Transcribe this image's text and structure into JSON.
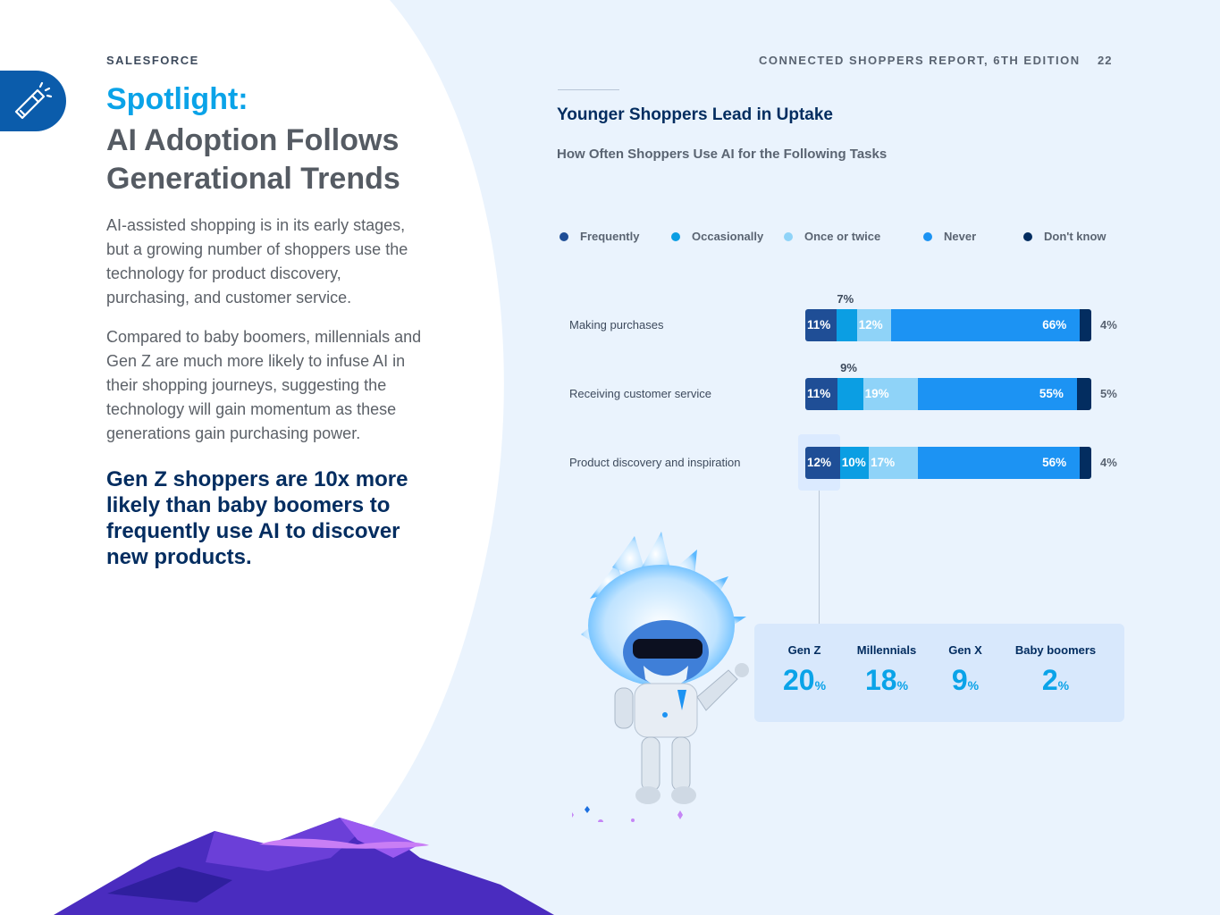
{
  "header": {
    "brand": "SALESFORCE",
    "report_title": "CONNECTED SHOPPERS REPORT, 6TH EDITION",
    "page_number": "22"
  },
  "left": {
    "spotlight_icon": "flashlight-icon",
    "heading_spotlight": "Spotlight:",
    "heading_main": "AI Adoption Follows Generational Trends",
    "paragraph1": "AI-assisted shopping is in its early stages, but a growing number of shoppers use the technology for product discovery, purchasing, and customer service.",
    "paragraph2": "Compared to baby boomers, millennials and Gen Z are much more likely to infuse AI in their shopping journeys, suggesting the technology will gain momentum as these generations gain purchasing power.",
    "callout": "Gen Z shoppers are 10x more likely than baby boomers to frequently use AI to discover new products."
  },
  "colors": {
    "frequently": "#1f4e96",
    "occasionally": "#0b9ee3",
    "once_or_twice": "#8fd3f8",
    "never": "#1c93f3",
    "dont_know": "#032d60"
  },
  "chart_data": {
    "type": "bar",
    "stacked": true,
    "orientation": "horizontal",
    "title": "Younger Shoppers Lead in Uptake",
    "subtitle": "How Often Shoppers Use AI for the Following Tasks",
    "legend_position": "top",
    "categories": [
      "Making purchases",
      "Receiving customer service",
      "Product discovery and inspiration"
    ],
    "series": [
      {
        "name": "Frequently",
        "values": [
          11,
          11,
          12
        ]
      },
      {
        "name": "Occasionally",
        "values": [
          7,
          9,
          10
        ]
      },
      {
        "name": "Once or twice",
        "values": [
          12,
          19,
          17
        ]
      },
      {
        "name": "Never",
        "values": [
          66,
          55,
          56
        ]
      },
      {
        "name": "Don't know",
        "values": [
          4,
          5,
          4
        ]
      }
    ],
    "unit": "%",
    "highlight": {
      "category": "Product discovery and inspiration",
      "series": "Frequently",
      "breakdown": [
        {
          "generation": "Gen Z",
          "value": 20
        },
        {
          "generation": "Millennials",
          "value": 18
        },
        {
          "generation": "Gen X",
          "value": 9
        },
        {
          "generation": "Baby boomers",
          "value": 2
        }
      ]
    }
  }
}
